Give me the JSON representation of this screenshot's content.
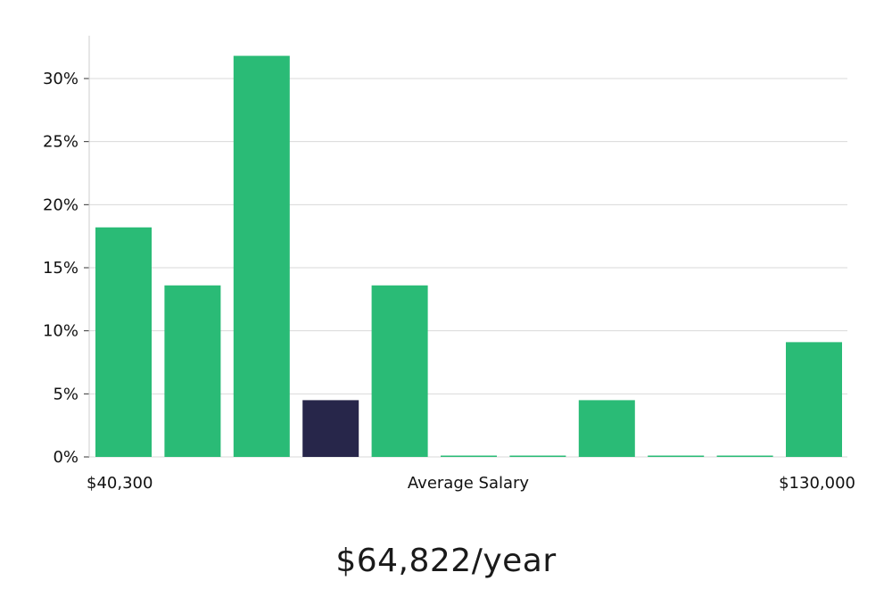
{
  "chart_data": {
    "type": "bar",
    "title": "",
    "ylabel": "",
    "xlabel": "Average Salary",
    "x_min_label": "$40,300",
    "x_max_label": "$130,000",
    "ylim": [
      0,
      33
    ],
    "yticks": [
      0,
      5,
      10,
      15,
      20,
      25,
      30
    ],
    "ytick_labels": [
      "0%",
      "5%",
      "10%",
      "15%",
      "20%",
      "25%",
      "30%"
    ],
    "grid": true,
    "values": [
      18.2,
      13.6,
      31.8,
      4.5,
      13.6,
      0,
      0,
      4.5,
      0,
      0,
      9.1
    ],
    "highlight_index": 3,
    "colors": {
      "bar": "#2abb76",
      "highlight": "#27264a",
      "grid": "#d9d9d9",
      "axis": "#cccccc"
    }
  },
  "salary_text": "$64,822/year"
}
